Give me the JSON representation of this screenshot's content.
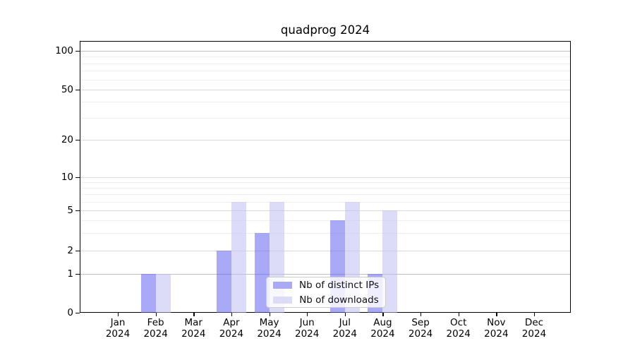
{
  "page": {
    "background": "#ffffff"
  },
  "chart_data": {
    "type": "bar",
    "title": "quadprog 2024",
    "categories": [
      "Jan",
      "Feb",
      "Mar",
      "Apr",
      "May",
      "Jun",
      "Jul",
      "Aug",
      "Sep",
      "Oct",
      "Nov",
      "Dec"
    ],
    "year_label": "2024",
    "series": [
      {
        "name": "Nb of distinct IPs",
        "color": "#a9a9f7",
        "values": [
          0,
          1,
          0,
          2,
          3,
          0,
          4,
          1,
          0,
          0,
          0,
          0
        ]
      },
      {
        "name": "Nb of downloads",
        "color": "#dcdcf8",
        "values": [
          0,
          1,
          0,
          6,
          6,
          0,
          6,
          5,
          0,
          0,
          0,
          0
        ]
      }
    ],
    "yticks": [
      0,
      1,
      2,
      5,
      10,
      20,
      50,
      100
    ],
    "minor_yticks": [
      3,
      4,
      6,
      7,
      8,
      9,
      30,
      40,
      60,
      70,
      80,
      90
    ],
    "yscale": "log-like",
    "ylim": [
      0,
      120
    ],
    "xlabel": "",
    "ylabel": "",
    "grid": true,
    "legend_position": "lower center"
  }
}
